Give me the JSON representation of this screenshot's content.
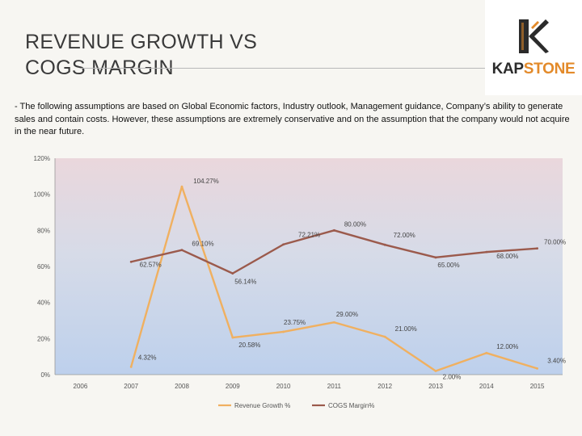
{
  "slide": {
    "title_line1": "REVENUE GROWTH VS",
    "title_line2": "COGS MARGIN",
    "intro": "- The following assumptions are based on Global Economic factors, Industry outlook, Management guidance, Company’s ability to generate sales and contain costs. However, these assumptions are extremely conservative and on the assumption that the company would not acquire in the near future."
  },
  "logo": {
    "word_part1": "KAP",
    "word_part2": "STONE",
    "icon": "kapstone-k-mark-icon"
  },
  "colors": {
    "revenue": "#f0b060",
    "cogs": "#9b5a4c",
    "logo_accent": "#e38a2a"
  },
  "chart_data": {
    "type": "line",
    "categories": [
      "2006",
      "2007",
      "2008",
      "2009",
      "2010",
      "2011",
      "2012",
      "2013",
      "2014",
      "2015"
    ],
    "series": [
      {
        "name": "Revenue Growth %",
        "values": [
          null,
          4.32,
          104.27,
          20.58,
          23.75,
          29.0,
          21.0,
          2.0,
          12.0,
          3.4
        ],
        "labels": [
          "",
          "4.32%",
          "104.27%",
          "20.58%",
          "23.75%",
          "29.00%",
          "21.00%",
          "2.00%",
          "12.00%",
          "3.40%"
        ]
      },
      {
        "name": "COGS Margin%",
        "values": [
          null,
          62.57,
          69.1,
          56.14,
          72.21,
          80.0,
          72.0,
          65.0,
          68.0,
          70.0
        ],
        "labels": [
          "",
          "62.57%",
          "69.10%",
          "56.14%",
          "72.21%",
          "80.00%",
          "72.00%",
          "65.00%",
          "68.00%",
          "70.00%"
        ]
      }
    ],
    "ylim": [
      0,
      120
    ],
    "yticks": [
      "0%",
      "20%",
      "40%",
      "60%",
      "80%",
      "100%",
      "120%"
    ],
    "grid": false,
    "legend": "bottom"
  }
}
